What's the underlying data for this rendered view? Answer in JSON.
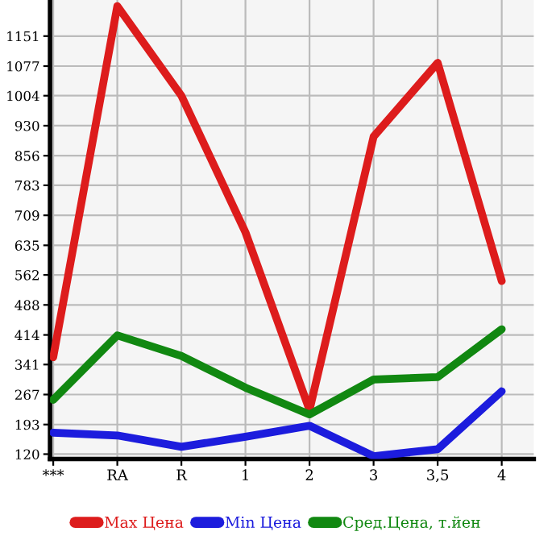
{
  "chart_data": {
    "type": "line",
    "categories": [
      "***",
      "RA",
      "R",
      "1",
      "2",
      "3",
      "3,5",
      "4"
    ],
    "series": [
      {
        "name": "Max Цена",
        "color": "#dd1c1c",
        "values": [
          359,
          1225,
          1004,
          667,
          229,
          903,
          1085,
          547
        ]
      },
      {
        "name": "Min Цена",
        "color": "#1c1cdd",
        "values": [
          173,
          166,
          138,
          163,
          190,
          115,
          132,
          275
        ]
      },
      {
        "name": "Сред.Цена, т.йен",
        "color": "#118811",
        "values": [
          254,
          413,
          362,
          284,
          218,
          304,
          310,
          428
        ]
      }
    ],
    "ylim": [
      108,
      1240
    ],
    "yticks": [
      120,
      193,
      267,
      341,
      414,
      488,
      562,
      635,
      709,
      783,
      856,
      930,
      1004,
      1077,
      1151
    ],
    "grid": true,
    "legend": "bottom",
    "marker": "none",
    "line_style": "solid"
  }
}
